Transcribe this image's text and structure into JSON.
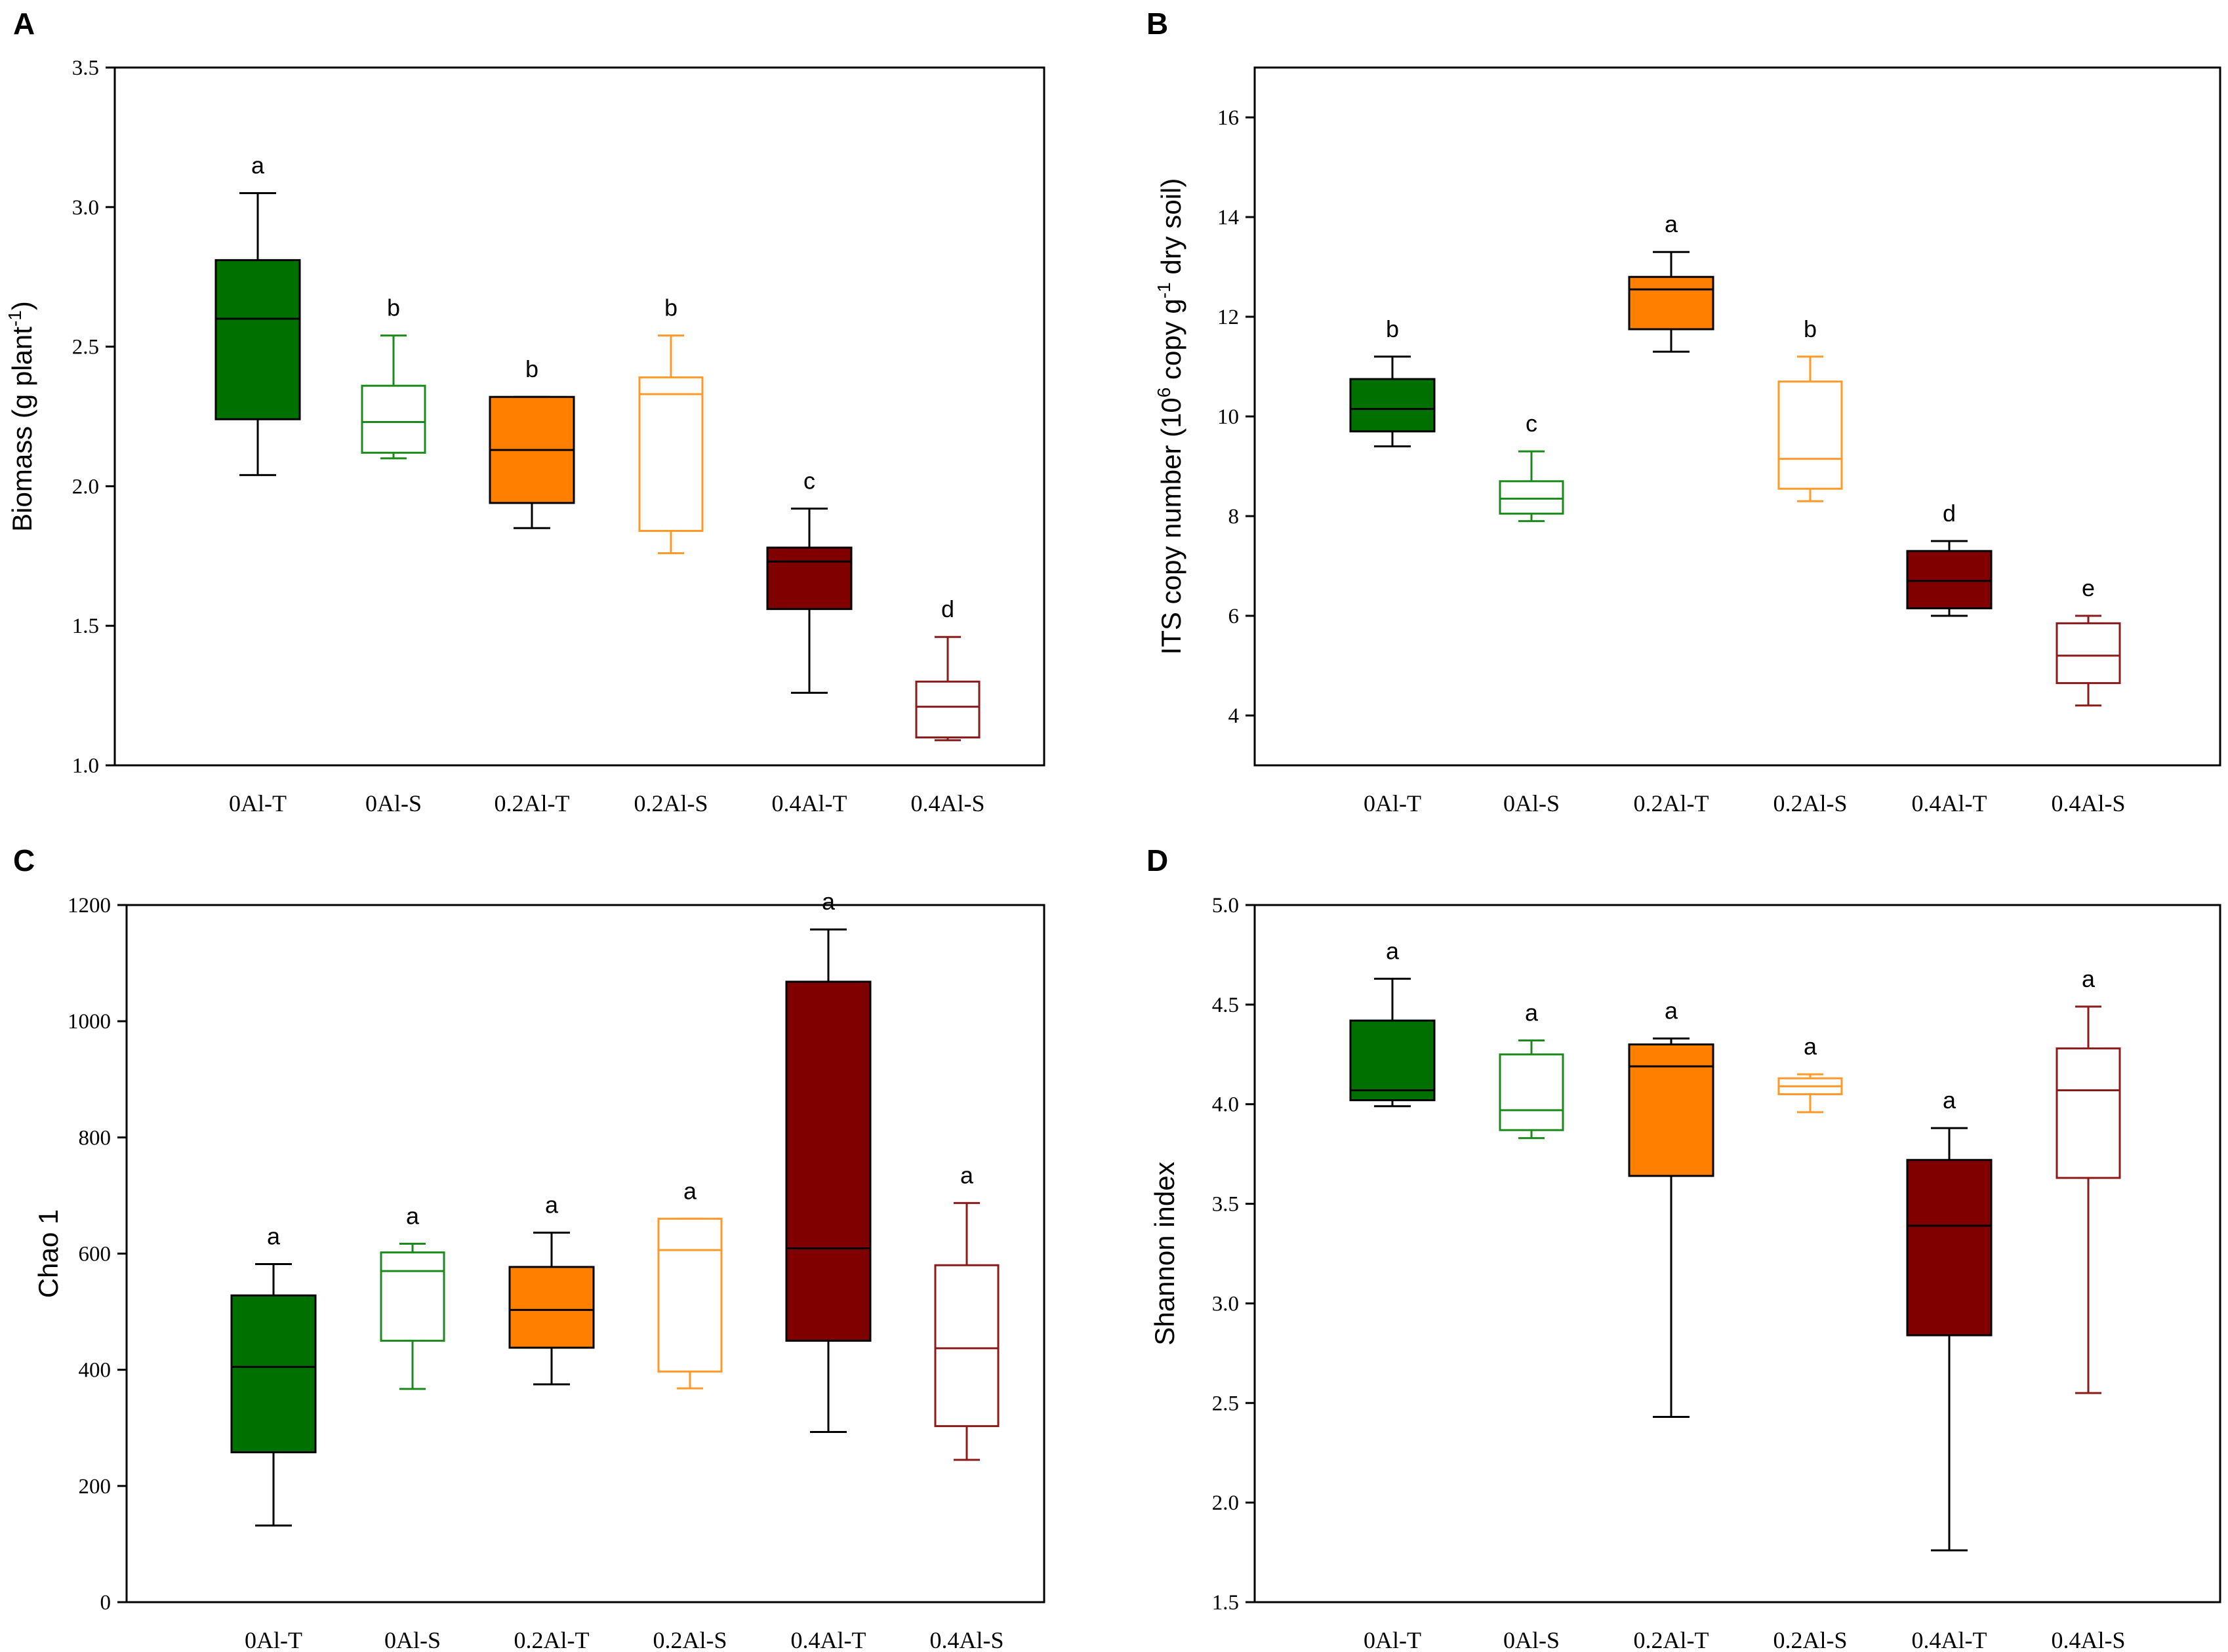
{
  "figure": {
    "categories": [
      "0Al-T",
      "0Al-S",
      "0.2Al-T",
      "0.2Al-S",
      "0.4Al-T",
      "0.4Al-S"
    ],
    "series_colors": {
      "0Al-T": {
        "fill": "#007000",
        "stroke": "#000000",
        "median": "#000000"
      },
      "0Al-S": {
        "fill": "#ffffff",
        "stroke": "#1a8a1a",
        "median": "#1a8a1a"
      },
      "0.2Al-T": {
        "fill": "#ff8000",
        "stroke": "#000000",
        "median": "#000000"
      },
      "0.2Al-S": {
        "fill": "#ffffff",
        "stroke": "#ff9a2a",
        "median": "#ff9a2a"
      },
      "0.4Al-T": {
        "fill": "#800000",
        "stroke": "#000000",
        "median": "#000000"
      },
      "0.4Al-S": {
        "fill": "#ffffff",
        "stroke": "#8b1a1a",
        "median": "#8b1a1a"
      }
    }
  },
  "chart_data": [
    {
      "panel": "A",
      "type": "box",
      "ylabel": "Biomass (g plant",
      "ylabel_sup": "-1",
      "ylabel_end": ")",
      "ylim": [
        1.0,
        3.5
      ],
      "yticks": [
        "1.0",
        "1.5",
        "2.0",
        "2.5",
        "3.0",
        "3.5"
      ],
      "ytick_values": [
        1.0,
        1.5,
        2.0,
        2.5,
        3.0,
        3.5
      ],
      "boxes": [
        {
          "category": "0Al-T",
          "whisker_low": 2.04,
          "q1": 2.24,
          "median": 2.6,
          "q3": 2.81,
          "whisker_high": 3.05,
          "letter": "a"
        },
        {
          "category": "0Al-S",
          "whisker_low": 2.1,
          "q1": 2.12,
          "median": 2.23,
          "q3": 2.36,
          "whisker_high": 2.54,
          "letter": "b"
        },
        {
          "category": "0.2Al-T",
          "whisker_low": 1.85,
          "q1": 1.94,
          "median": 2.13,
          "q3": 2.32,
          "whisker_high": 2.32,
          "letter": "b"
        },
        {
          "category": "0.2Al-S",
          "whisker_low": 1.76,
          "q1": 1.84,
          "median": 2.33,
          "q3": 2.39,
          "whisker_high": 2.54,
          "letter": "b"
        },
        {
          "category": "0.4Al-T",
          "whisker_low": 1.26,
          "q1": 1.56,
          "median": 1.73,
          "q3": 1.78,
          "whisker_high": 1.92,
          "letter": "c"
        },
        {
          "category": "0.4Al-S",
          "whisker_low": 1.09,
          "q1": 1.1,
          "median": 1.21,
          "q3": 1.3,
          "whisker_high": 1.46,
          "letter": "d"
        }
      ]
    },
    {
      "panel": "B",
      "type": "box",
      "ylabel": "ITS copy number (10",
      "ylabel_sup": "6",
      "ylabel_mid": " copy g",
      "ylabel_sup2": "-1",
      "ylabel_end": " dry soil)",
      "ylim": [
        3.0,
        17.0
      ],
      "yticks": [
        "4",
        "6",
        "8",
        "10",
        "12",
        "14",
        "16"
      ],
      "ytick_values": [
        4,
        6,
        8,
        10,
        12,
        14,
        16
      ],
      "boxes": [
        {
          "category": "0Al-T",
          "whisker_low": 9.4,
          "q1": 9.7,
          "median": 10.15,
          "q3": 10.75,
          "whisker_high": 11.2,
          "letter": "b"
        },
        {
          "category": "0Al-S",
          "whisker_low": 7.9,
          "q1": 8.05,
          "median": 8.35,
          "q3": 8.7,
          "whisker_high": 9.3,
          "letter": "c"
        },
        {
          "category": "0.2Al-T",
          "whisker_low": 11.3,
          "q1": 11.75,
          "median": 12.55,
          "q3": 12.8,
          "whisker_high": 13.3,
          "letter": "a"
        },
        {
          "category": "0.2Al-S",
          "whisker_low": 8.3,
          "q1": 8.55,
          "median": 9.15,
          "q3": 10.7,
          "whisker_high": 11.2,
          "letter": "b"
        },
        {
          "category": "0.4Al-T",
          "whisker_low": 6.0,
          "q1": 6.15,
          "median": 6.7,
          "q3": 7.3,
          "whisker_high": 7.5,
          "letter": "d"
        },
        {
          "category": "0.4Al-S",
          "whisker_low": 4.2,
          "q1": 4.65,
          "median": 5.2,
          "q3": 5.85,
          "whisker_high": 6.0,
          "letter": "e"
        }
      ]
    },
    {
      "panel": "C",
      "type": "box",
      "ylabel": "Chao 1",
      "ylim": [
        0,
        1200
      ],
      "yticks": [
        "0",
        "200",
        "400",
        "600",
        "800",
        "1000",
        "1200"
      ],
      "ytick_values": [
        0,
        200,
        400,
        600,
        800,
        1000,
        1200
      ],
      "boxes": [
        {
          "category": "0Al-T",
          "whisker_low": 132,
          "q1": 258,
          "median": 405,
          "q3": 528,
          "whisker_high": 582,
          "letter": "a"
        },
        {
          "category": "0Al-S",
          "whisker_low": 367,
          "q1": 450,
          "median": 570,
          "q3": 602,
          "whisker_high": 617,
          "letter": "a"
        },
        {
          "category": "0.2Al-T",
          "whisker_low": 375,
          "q1": 438,
          "median": 503,
          "q3": 577,
          "whisker_high": 636,
          "letter": "a"
        },
        {
          "category": "0.2Al-S",
          "whisker_low": 368,
          "q1": 397,
          "median": 606,
          "q3": 660,
          "whisker_high": 660,
          "letter": "a"
        },
        {
          "category": "0.4Al-T",
          "whisker_low": 293,
          "q1": 450,
          "median": 609,
          "q3": 1068,
          "whisker_high": 1158,
          "letter": "a"
        },
        {
          "category": "0.4Al-S",
          "whisker_low": 245,
          "q1": 303,
          "median": 437,
          "q3": 580,
          "whisker_high": 687,
          "letter": "a"
        }
      ]
    },
    {
      "panel": "D",
      "type": "box",
      "ylabel": "Shannon index",
      "ylim": [
        1.5,
        5.0
      ],
      "yticks": [
        "1.5",
        "2.0",
        "2.5",
        "3.0",
        "3.5",
        "4.0",
        "4.5",
        "5.0"
      ],
      "ytick_values": [
        1.5,
        2.0,
        2.5,
        3.0,
        3.5,
        4.0,
        4.5,
        5.0
      ],
      "boxes": [
        {
          "category": "0Al-T",
          "whisker_low": 3.99,
          "q1": 4.02,
          "median": 4.07,
          "q3": 4.42,
          "whisker_high": 4.63,
          "letter": "a"
        },
        {
          "category": "0Al-S",
          "whisker_low": 3.83,
          "q1": 3.87,
          "median": 3.97,
          "q3": 4.25,
          "whisker_high": 4.32,
          "letter": "a"
        },
        {
          "category": "0.2Al-T",
          "whisker_low": 2.43,
          "q1": 3.64,
          "median": 4.19,
          "q3": 4.3,
          "whisker_high": 4.33,
          "letter": "a"
        },
        {
          "category": "0.2Al-S",
          "whisker_low": 3.96,
          "q1": 4.05,
          "median": 4.09,
          "q3": 4.13,
          "whisker_high": 4.15,
          "letter": "a"
        },
        {
          "category": "0.4Al-T",
          "whisker_low": 1.76,
          "q1": 2.84,
          "median": 3.39,
          "q3": 3.72,
          "whisker_high": 3.88,
          "letter": "a"
        },
        {
          "category": "0.4Al-S",
          "whisker_low": 2.55,
          "q1": 3.63,
          "median": 4.07,
          "q3": 4.28,
          "whisker_high": 4.49,
          "letter": "a"
        }
      ]
    }
  ]
}
